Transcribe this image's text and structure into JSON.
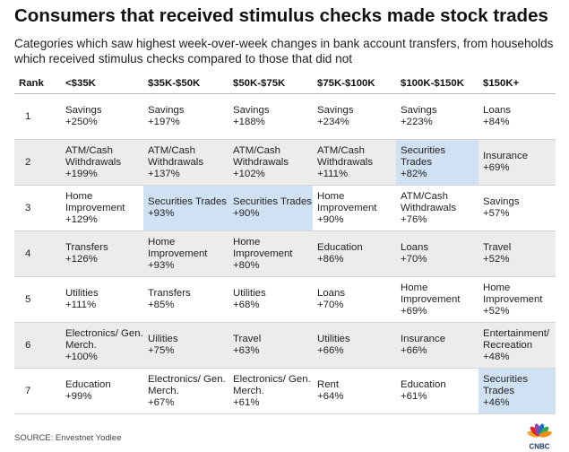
{
  "title": "Consumers that received stimulus checks made stock trades",
  "subtitle": "Categories which saw highest week-over-week changes in bank account transfers, from households which received stimulus checks compared to those that did not",
  "source": "SOURCE: Envestnet Yodlee",
  "logo_text": "CNBC",
  "colors": {
    "row_shade": "#ececec",
    "highlight": "#d0e1f3"
  },
  "chart_data": {
    "type": "table",
    "title": "Consumers that received stimulus checks made stock trades",
    "subtitle": "Categories which saw highest week-over-week changes in bank account transfers, from households which received stimulus checks compared to those that did not",
    "rank_label": "Rank",
    "columns": [
      "<$35K",
      "$35K-$50K",
      "$50K-$75K",
      "$75K-$100K",
      "$100K-$150K",
      "$150K+"
    ],
    "rows": [
      {
        "rank": "1",
        "cells": [
          {
            "name": "Savings",
            "value": "+250%"
          },
          {
            "name": "Savings",
            "value": "+197%"
          },
          {
            "name": "Savings",
            "value": "+188%"
          },
          {
            "name": "Savings",
            "value": "+234%"
          },
          {
            "name": "Savings",
            "value": "+223%"
          },
          {
            "name": "Loans",
            "value": "+84%"
          }
        ]
      },
      {
        "rank": "2",
        "cells": [
          {
            "name": "ATM/Cash Withdrawals",
            "value": "+199%"
          },
          {
            "name": "ATM/Cash Withdrawals",
            "value": "+137%"
          },
          {
            "name": "ATM/Cash Withdrawals",
            "value": "+102%"
          },
          {
            "name": "ATM/Cash Withdrawals",
            "value": "+111%"
          },
          {
            "name": "Securities Trades",
            "value": "+82%",
            "highlight": true
          },
          {
            "name": "Insurance",
            "value": "+69%"
          }
        ]
      },
      {
        "rank": "3",
        "cells": [
          {
            "name": "Home Improvement",
            "value": "+129%"
          },
          {
            "name": "Securities Trades",
            "value": "+93%",
            "highlight": true
          },
          {
            "name": "Securities Trades",
            "value": "+90%",
            "highlight": true
          },
          {
            "name": "Home Improvement",
            "value": "+90%"
          },
          {
            "name": "ATM/Cash Withdrawals",
            "value": "+76%"
          },
          {
            "name": "Savings",
            "value": "+57%"
          }
        ]
      },
      {
        "rank": "4",
        "cells": [
          {
            "name": "Transfers",
            "value": "+126%"
          },
          {
            "name": "Home Improvement",
            "value": "+93%"
          },
          {
            "name": "Home Improvement",
            "value": "+80%"
          },
          {
            "name": "Education",
            "value": "+86%"
          },
          {
            "name": "Loans",
            "value": "+70%"
          },
          {
            "name": "Travel",
            "value": "+52%"
          }
        ]
      },
      {
        "rank": "5",
        "cells": [
          {
            "name": "Utilities",
            "value": "+111%"
          },
          {
            "name": "Transfers",
            "value": "+85%"
          },
          {
            "name": "Utilities",
            "value": "+68%"
          },
          {
            "name": "Loans",
            "value": "+70%"
          },
          {
            "name": "Home Improvement",
            "value": "+69%"
          },
          {
            "name": "Home Improvement",
            "value": "+52%"
          }
        ]
      },
      {
        "rank": "6",
        "cells": [
          {
            "name": "Electronics/ Gen. Merch.",
            "value": "+100%"
          },
          {
            "name": "Uilities",
            "value": "+75%"
          },
          {
            "name": "Travel",
            "value": "+63%"
          },
          {
            "name": "Utilities",
            "value": "+66%"
          },
          {
            "name": "Insurance",
            "value": "+66%"
          },
          {
            "name": "Entertainment/ Recreation",
            "value": "+48%"
          }
        ]
      },
      {
        "rank": "7",
        "cells": [
          {
            "name": "Education",
            "value": "+99%"
          },
          {
            "name": "Electronics/ Gen. Merch.",
            "value": "+67%"
          },
          {
            "name": "Electronics/ Gen. Merch.",
            "value": "+61%"
          },
          {
            "name": "Rent",
            "value": "+64%"
          },
          {
            "name": "Education",
            "value": "+61%"
          },
          {
            "name": "Securities Trades",
            "value": "+46%",
            "highlight": true
          }
        ]
      }
    ]
  }
}
